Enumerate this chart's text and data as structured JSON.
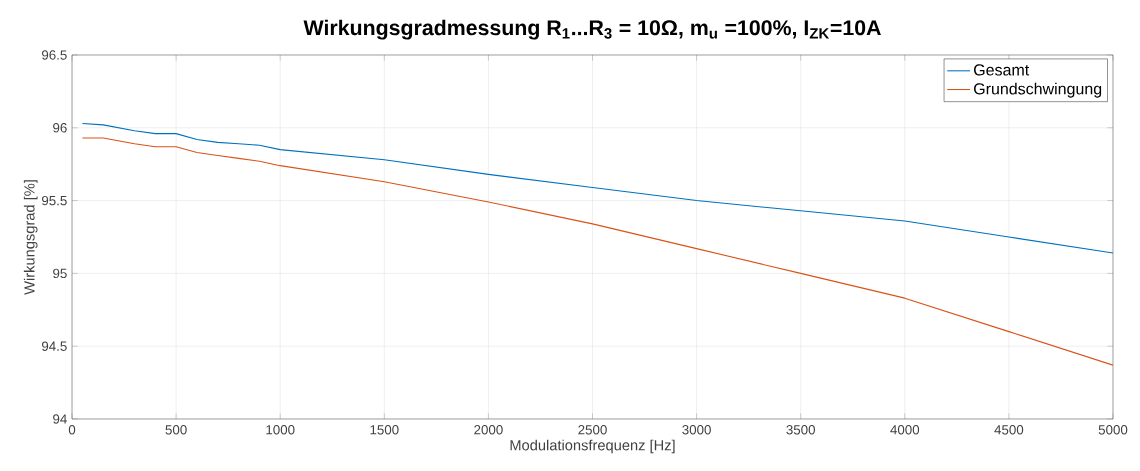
{
  "chart_data": {
    "type": "line",
    "title": "Wirkungsgradmessung R$_{1}$...R$_{3}$ = 10Ω, m$_{u}$ =100%, I$_{ZK}$=10A",
    "xlabel": "Modulationsfrequenz [Hz]",
    "ylabel": "Wirkungsgrad [%]",
    "x": [
      50,
      150,
      300,
      400,
      500,
      600,
      700,
      800,
      900,
      1000,
      1500,
      2000,
      2500,
      3000,
      3500,
      4000,
      4500,
      5000
    ],
    "series": [
      {
        "name": "Gesamt",
        "color": "#0072bd",
        "values": [
          96.03,
          96.02,
          95.98,
          95.96,
          95.96,
          95.92,
          95.9,
          95.89,
          95.88,
          95.85,
          95.78,
          95.68,
          95.59,
          95.5,
          95.43,
          95.36,
          95.25,
          95.14
        ]
      },
      {
        "name": "Grundschwingung",
        "color": "#d95319",
        "values": [
          95.93,
          95.93,
          95.89,
          95.87,
          95.87,
          95.83,
          95.81,
          95.79,
          95.77,
          95.74,
          95.63,
          95.49,
          95.34,
          95.17,
          95.0,
          94.83,
          94.6,
          94.37
        ]
      }
    ],
    "xlim": [
      0,
      5000
    ],
    "xticks": [
      0,
      500,
      1000,
      1500,
      2000,
      2500,
      3000,
      3500,
      4000,
      4500,
      5000
    ],
    "ylim": [
      94,
      96.5
    ],
    "yticks": [
      94,
      94.5,
      95,
      95.5,
      96,
      96.5
    ],
    "grid": true,
    "legend": "top right",
    "marker": "none",
    "line_style": "solid"
  }
}
